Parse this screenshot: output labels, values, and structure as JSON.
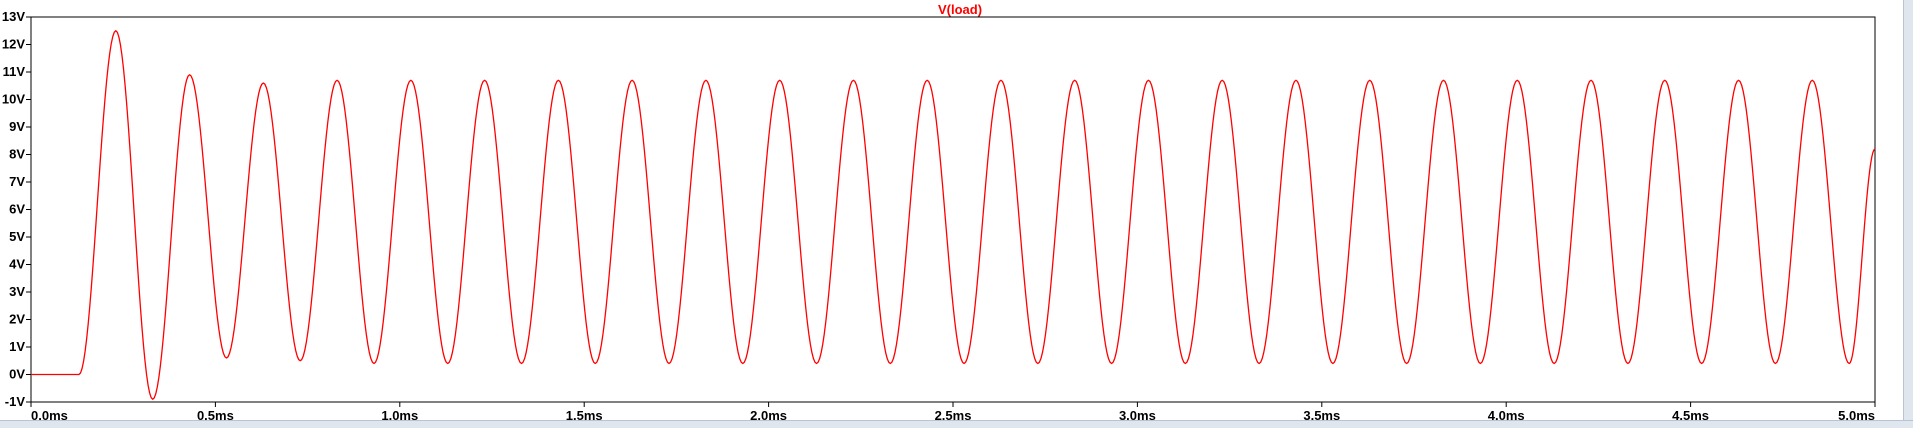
{
  "chart_data": {
    "type": "line",
    "title": "V(load)",
    "title_color": "#ff0000",
    "trace_color": "#ff0000",
    "background": "#ffffff",
    "grid": false,
    "xlim": [
      0.0,
      5.0
    ],
    "ylim": [
      -1,
      13
    ],
    "x_unit": "ms",
    "y_unit": "V",
    "x_ticks": [
      "0.0ms",
      "0.5ms",
      "1.0ms",
      "1.5ms",
      "2.0ms",
      "2.5ms",
      "3.0ms",
      "3.5ms",
      "4.0ms",
      "4.5ms",
      "5.0ms"
    ],
    "y_ticks": [
      "-1V",
      "0V",
      "1V",
      "2V",
      "3V",
      "4V",
      "5V",
      "6V",
      "7V",
      "8V",
      "9V",
      "10V",
      "11V",
      "12V",
      "13V"
    ],
    "series": [
      {
        "name": "V(load)",
        "x": [
          0.0,
          0.13,
          0.23,
          0.33,
          0.43,
          0.53,
          0.63,
          0.73,
          0.83,
          0.93,
          1.03,
          1.13,
          1.23,
          1.33,
          1.43,
          1.53,
          1.63,
          1.73,
          1.83,
          1.93,
          2.03,
          2.13,
          2.23,
          2.33,
          2.43,
          2.53,
          2.63,
          2.73,
          2.83,
          2.93,
          3.03,
          3.13,
          3.23,
          3.33,
          3.43,
          3.53,
          3.63,
          3.73,
          3.83,
          3.93,
          4.03,
          4.13,
          4.23,
          4.33,
          4.43,
          4.53,
          4.63,
          4.73,
          4.83,
          4.93,
          5.0
        ],
        "y": [
          0.0,
          0.0,
          12.5,
          -0.9,
          10.9,
          0.6,
          10.6,
          0.5,
          10.7,
          0.4,
          10.7,
          0.4,
          10.7,
          0.4,
          10.7,
          0.4,
          10.7,
          0.4,
          10.7,
          0.4,
          10.7,
          0.4,
          10.7,
          0.4,
          10.7,
          0.4,
          10.7,
          0.4,
          10.7,
          0.4,
          10.7,
          0.4,
          10.7,
          0.4,
          10.7,
          0.4,
          10.7,
          0.4,
          10.7,
          0.4,
          10.7,
          0.4,
          10.7,
          0.4,
          10.7,
          0.4,
          10.7,
          0.4,
          10.7,
          0.4,
          8.2
        ]
      }
    ]
  }
}
